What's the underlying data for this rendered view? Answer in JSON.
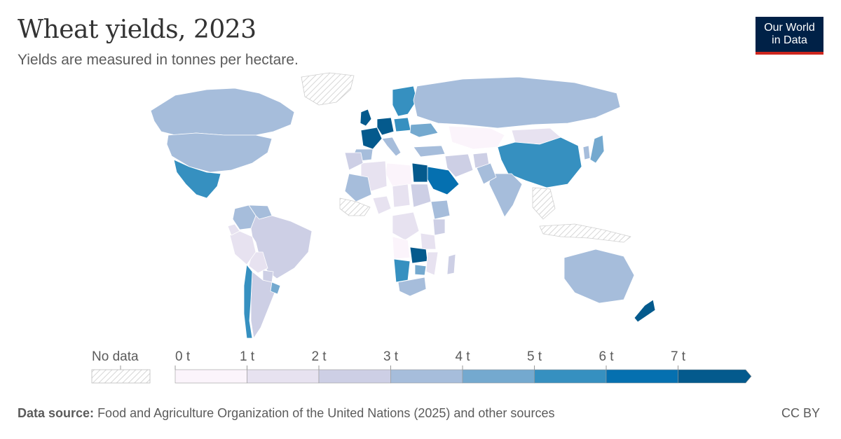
{
  "header": {
    "title": "Wheat yields, 2023",
    "subtitle": "Yields are measured in tonnes per hectare."
  },
  "logo": {
    "line1": "Our World",
    "line2": "in Data"
  },
  "legend": {
    "no_data_label": "No data",
    "ticks": [
      "0 t",
      "1 t",
      "2 t",
      "3 t",
      "4 t",
      "5 t",
      "6 t",
      "7 t"
    ],
    "bins": [
      {
        "min": 0,
        "max": 1,
        "color": "#fbf4fb"
      },
      {
        "min": 1,
        "max": 2,
        "color": "#e7e2f0"
      },
      {
        "min": 2,
        "max": 3,
        "color": "#cdcfe5"
      },
      {
        "min": 3,
        "max": 4,
        "color": "#a6bddb"
      },
      {
        "min": 4,
        "max": 5,
        "color": "#74a9cf"
      },
      {
        "min": 5,
        "max": 6,
        "color": "#3690c0"
      },
      {
        "min": 6,
        "max": 7,
        "color": "#0570b0"
      },
      {
        "min": 7,
        "max": null,
        "color": "#045a8d"
      }
    ],
    "no_data_color": "#e6e6e6"
  },
  "map_data": {
    "variable": "Wheat yield",
    "unit": "t/ha",
    "year": "2023",
    "regions": [
      {
        "name": "Canada",
        "value": 3.2
      },
      {
        "name": "United States",
        "value": 3.3
      },
      {
        "name": "Mexico",
        "value": 5.5
      },
      {
        "name": "Greenland",
        "value": null
      },
      {
        "name": "Brazil",
        "value": 2.5
      },
      {
        "name": "Argentina",
        "value": 2.6
      },
      {
        "name": "Chile",
        "value": 5.6
      },
      {
        "name": "Bolivia",
        "value": 1.3
      },
      {
        "name": "Colombia",
        "value": 3.0
      },
      {
        "name": "Peru",
        "value": 1.6
      },
      {
        "name": "Uruguay",
        "value": 4.2
      },
      {
        "name": "Paraguay",
        "value": 2.4
      },
      {
        "name": "Ecuador",
        "value": 1.0
      },
      {
        "name": "Venezuela",
        "value": 3.0
      },
      {
        "name": "United Kingdom",
        "value": 8.6
      },
      {
        "name": "France",
        "value": 7.2
      },
      {
        "name": "Germany",
        "value": 7.6
      },
      {
        "name": "Spain",
        "value": 3.6
      },
      {
        "name": "Italy",
        "value": 3.7
      },
      {
        "name": "Poland",
        "value": 5.6
      },
      {
        "name": "Ukraine",
        "value": 4.5
      },
      {
        "name": "Scandinavia",
        "value": 5.5
      },
      {
        "name": "Russia",
        "value": 3.1
      },
      {
        "name": "Kazakhstan",
        "value": 0.9
      },
      {
        "name": "Mongolia",
        "value": 1.5
      },
      {
        "name": "China",
        "value": 5.8
      },
      {
        "name": "India",
        "value": 3.5
      },
      {
        "name": "Japan",
        "value": 4.5
      },
      {
        "name": "Korea",
        "value": 3.0
      },
      {
        "name": "Turkey",
        "value": 3.0
      },
      {
        "name": "Iran",
        "value": 2.2
      },
      {
        "name": "Afghanistan",
        "value": 2.3
      },
      {
        "name": "Pakistan",
        "value": 3.0
      },
      {
        "name": "Saudi Arabia",
        "value": 6.5
      },
      {
        "name": "Egypt",
        "value": 7.3
      },
      {
        "name": "Libya",
        "value": 0.8
      },
      {
        "name": "Algeria",
        "value": 1.4
      },
      {
        "name": "Morocco",
        "value": 2.0
      },
      {
        "name": "Mali",
        "value": 3.5
      },
      {
        "name": "Nigeria",
        "value": 1.3
      },
      {
        "name": "Chad",
        "value": 1.5
      },
      {
        "name": "Sudan",
        "value": 2.1
      },
      {
        "name": "Ethiopia",
        "value": 3.2
      },
      {
        "name": "Kenya",
        "value": 2.4
      },
      {
        "name": "Tanzania",
        "value": 1.4
      },
      {
        "name": "DR Congo",
        "value": 1.5
      },
      {
        "name": "Angola",
        "value": 0.8
      },
      {
        "name": "Zambia",
        "value": 7.0
      },
      {
        "name": "Zimbabwe",
        "value": 4.5
      },
      {
        "name": "Mozambique",
        "value": 1.0
      },
      {
        "name": "Madagascar",
        "value": 2.8
      },
      {
        "name": "Namibia",
        "value": 5.5
      },
      {
        "name": "South Africa",
        "value": 3.5
      },
      {
        "name": "Australia",
        "value": 3.2
      },
      {
        "name": "New Zealand",
        "value": 9.0
      },
      {
        "name": "Indonesia",
        "value": null
      },
      {
        "name": "Southeast Asia",
        "value": null
      },
      {
        "name": "West Africa coast",
        "value": null
      }
    ]
  },
  "footer": {
    "source_label": "Data source:",
    "source_text": "Food and Agriculture Organization of the United Nations (2025) and other sources",
    "license": "CC BY"
  }
}
